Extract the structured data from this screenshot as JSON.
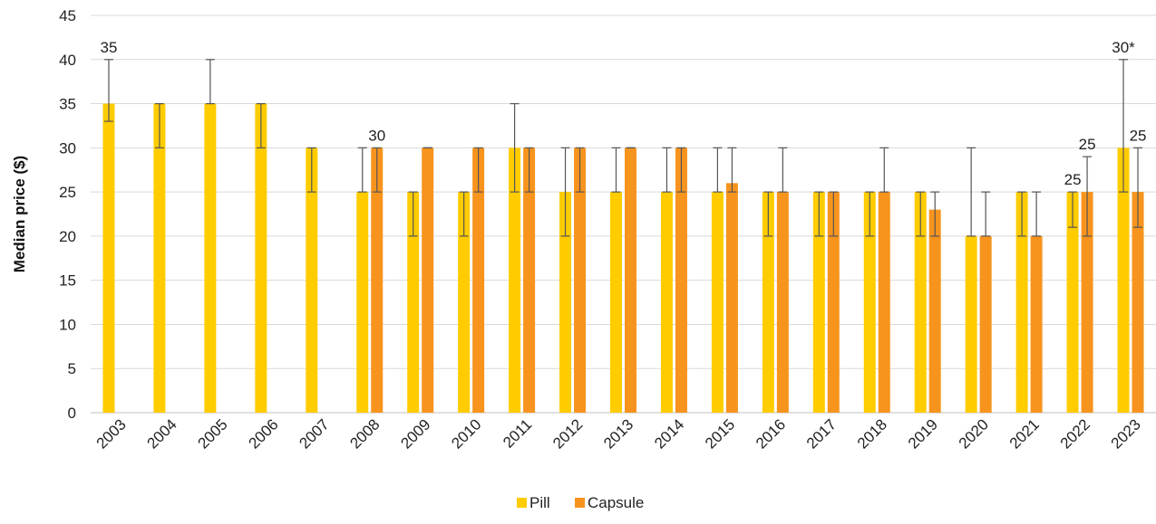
{
  "chart_data": {
    "type": "bar",
    "title": "",
    "xlabel": "",
    "ylabel": "Median price ($)",
    "ylim": [
      0,
      45
    ],
    "yticks": [
      "0",
      "5",
      "10",
      "15",
      "20",
      "25",
      "30",
      "35",
      "40",
      "45"
    ],
    "grid": "horizontal",
    "legend_position": "bottom",
    "categories": [
      "2003",
      "2004",
      "2005",
      "2006",
      "2007",
      "2008",
      "2009",
      "2010",
      "2011",
      "2012",
      "2013",
      "2014",
      "2015",
      "2016",
      "2017",
      "2018",
      "2019",
      "2020",
      "2021",
      "2022",
      "2023"
    ],
    "series": [
      {
        "name": "Pill",
        "color": "#FFCC00",
        "values": [
          35,
          35,
          35,
          35,
          30,
          25,
          25,
          25,
          30,
          25,
          25,
          25,
          25,
          25,
          25,
          25,
          25,
          20,
          25,
          25,
          30
        ],
        "error_low": [
          33,
          30,
          35,
          30,
          25,
          25,
          20,
          20,
          25,
          20,
          25,
          25,
          25,
          20,
          20,
          20,
          20,
          20,
          20,
          21,
          25
        ],
        "error_high": [
          40,
          35,
          40,
          35,
          30,
          30,
          25,
          25,
          35,
          30,
          30,
          30,
          30,
          25,
          25,
          25,
          25,
          30,
          25,
          25,
          40
        ]
      },
      {
        "name": "Capsule",
        "color": "#F7941D",
        "values": [
          null,
          null,
          null,
          null,
          null,
          30,
          30,
          30,
          30,
          30,
          30,
          30,
          26,
          25,
          25,
          25,
          23,
          20,
          20,
          25,
          25
        ],
        "error_low": [
          null,
          null,
          null,
          null,
          null,
          25,
          30,
          25,
          25,
          25,
          30,
          25,
          25,
          25,
          20,
          25,
          20,
          20,
          20,
          20,
          21
        ],
        "error_high": [
          null,
          null,
          null,
          null,
          null,
          30,
          30,
          30,
          30,
          30,
          30,
          30,
          30,
          30,
          25,
          30,
          25,
          25,
          25,
          29,
          30
        ]
      }
    ],
    "data_labels": [
      {
        "text": "35",
        "category": "2003",
        "series": "Pill"
      },
      {
        "text": "30",
        "category": "2008",
        "series": "Capsule"
      },
      {
        "text": "25",
        "category": "2022",
        "series": "Pill"
      },
      {
        "text": "25",
        "category": "2022",
        "series": "Capsule"
      },
      {
        "text": "30*",
        "category": "2023",
        "series": "Pill"
      },
      {
        "text": "25",
        "category": "2023",
        "series": "Capsule"
      }
    ]
  }
}
